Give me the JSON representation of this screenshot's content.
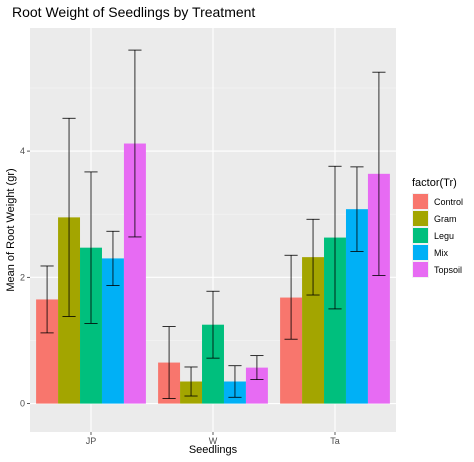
{
  "chart_data": {
    "type": "bar",
    "title": "Root Weight of Seedlings by Treatment",
    "xlabel": "Seedlings",
    "ylabel": "Mean of Root Weight (gr)",
    "categories": [
      "JP",
      "W",
      "Ta"
    ],
    "yticks": [
      "0",
      "2",
      "4"
    ],
    "ylim": [
      -0.45,
      5.95
    ],
    "grid": true,
    "legend": {
      "title": "factor(Tr)",
      "position": "right"
    },
    "series": [
      {
        "name": "Control",
        "color": "#F8766D",
        "values": [
          1.65,
          0.65,
          1.68
        ],
        "err_low": [
          1.12,
          0.08,
          1.02
        ],
        "err_high": [
          2.18,
          1.22,
          2.35
        ]
      },
      {
        "name": "Gram",
        "color": "#A3A500",
        "values": [
          2.95,
          0.35,
          2.32
        ],
        "err_low": [
          1.38,
          0.12,
          1.72
        ],
        "err_high": [
          4.52,
          0.58,
          2.92
        ]
      },
      {
        "name": "Legu",
        "color": "#00BF7D",
        "values": [
          2.47,
          1.25,
          2.63
        ],
        "err_low": [
          1.27,
          0.72,
          1.5
        ],
        "err_high": [
          3.67,
          1.78,
          3.76
        ]
      },
      {
        "name": "Mix",
        "color": "#00B0F6",
        "values": [
          2.3,
          0.35,
          3.08
        ],
        "err_low": [
          1.87,
          0.1,
          2.41
        ],
        "err_high": [
          2.73,
          0.6,
          3.75
        ]
      },
      {
        "name": "Topsoil",
        "color": "#E76BF3",
        "values": [
          4.12,
          0.57,
          3.64
        ],
        "err_low": [
          2.64,
          0.38,
          2.03
        ],
        "err_high": [
          5.6,
          0.76,
          5.25
        ]
      }
    ]
  }
}
